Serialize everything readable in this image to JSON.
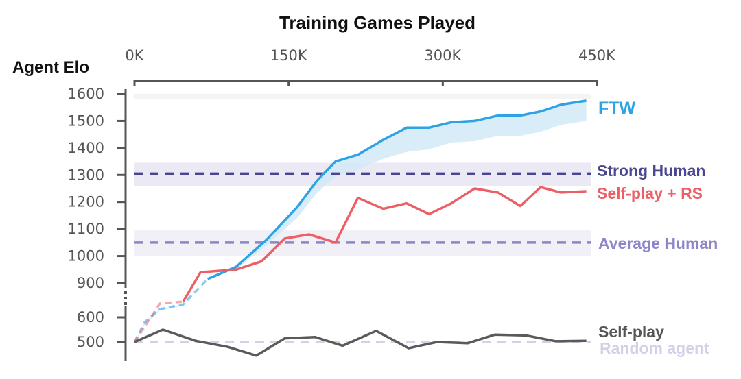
{
  "chart_data": {
    "type": "line",
    "title": "Training Games Played",
    "xlabel": "Training Games Played",
    "ylabel": "Agent Elo",
    "x_ticks": [
      "0K",
      "150K",
      "300K",
      "450K"
    ],
    "xlim": [
      0,
      450000
    ],
    "y_ticks": [
      "1600",
      "1500",
      "1400",
      "1300",
      "1200",
      "1100",
      "1000",
      "900",
      "600",
      "500"
    ],
    "y_axis_break": [
      650,
      850
    ],
    "grid": false,
    "series": [
      {
        "name": "FTW",
        "color": "#2da3e6",
        "band_color": "#cfe9f8",
        "x": [
          0,
          10000,
          25000,
          48000,
          72000,
          100000,
          130000,
          160000,
          180000,
          198000,
          220000,
          245000,
          268000,
          290000,
          312000,
          335000,
          358000,
          380000,
          400000,
          420000,
          445000
        ],
        "y": [
          500,
          580,
          660,
          695,
          880,
          960,
          1060,
          1180,
          1280,
          1350,
          1375,
          1430,
          1475,
          1475,
          1495,
          1500,
          1520,
          1520,
          1535,
          1560,
          1575
        ],
        "lower": [
          500,
          570,
          650,
          685,
          880,
          950,
          1040,
          1140,
          1235,
          1295,
          1320,
          1360,
          1385,
          1395,
          1420,
          1425,
          1445,
          1445,
          1460,
          1485,
          1500
        ],
        "solid_from": 72000
      },
      {
        "name": "Self-play + RS",
        "color": "#ec5f67",
        "x": [
          0,
          25000,
          48000,
          65000,
          100000,
          125000,
          148000,
          172000,
          198000,
          220000,
          245000,
          268000,
          290000,
          312000,
          335000,
          358000,
          380000,
          400000,
          420000,
          445000
        ],
        "y": [
          500,
          700,
          715,
          940,
          950,
          980,
          1065,
          1080,
          1050,
          1215,
          1175,
          1195,
          1155,
          1195,
          1250,
          1235,
          1185,
          1255,
          1235,
          1240
        ],
        "solid_from": 48000
      },
      {
        "name": "Self-play",
        "color": "#5a5a5a",
        "x": [
          0,
          28000,
          60000,
          92000,
          120000,
          148000,
          178000,
          205000,
          238000,
          270000,
          298000,
          328000,
          355000,
          385000,
          415000,
          445000
        ],
        "y": [
          500,
          550,
          505,
          480,
          445,
          515,
          520,
          485,
          545,
          475,
          500,
          495,
          530,
          527,
          503,
          505
        ]
      }
    ],
    "reference_lines": [
      {
        "name": "Strong Human",
        "value": 1305,
        "band": [
          1260,
          1345
        ],
        "color": "#4a458f",
        "band_color": "#ebe9f3"
      },
      {
        "name": "Average Human",
        "value": 1050,
        "band": [
          1000,
          1095
        ],
        "color": "#8c86c8",
        "band_color": "#f1f0f7"
      },
      {
        "name": "Random agent",
        "value": 500,
        "color": "#d3d0e8"
      }
    ],
    "labels": {
      "ftw": "FTW",
      "strong": "Strong Human",
      "selfplay_rs": "Self-play + RS",
      "average": "Average Human",
      "selfplay": "Self-play",
      "random": "Random agent"
    }
  }
}
